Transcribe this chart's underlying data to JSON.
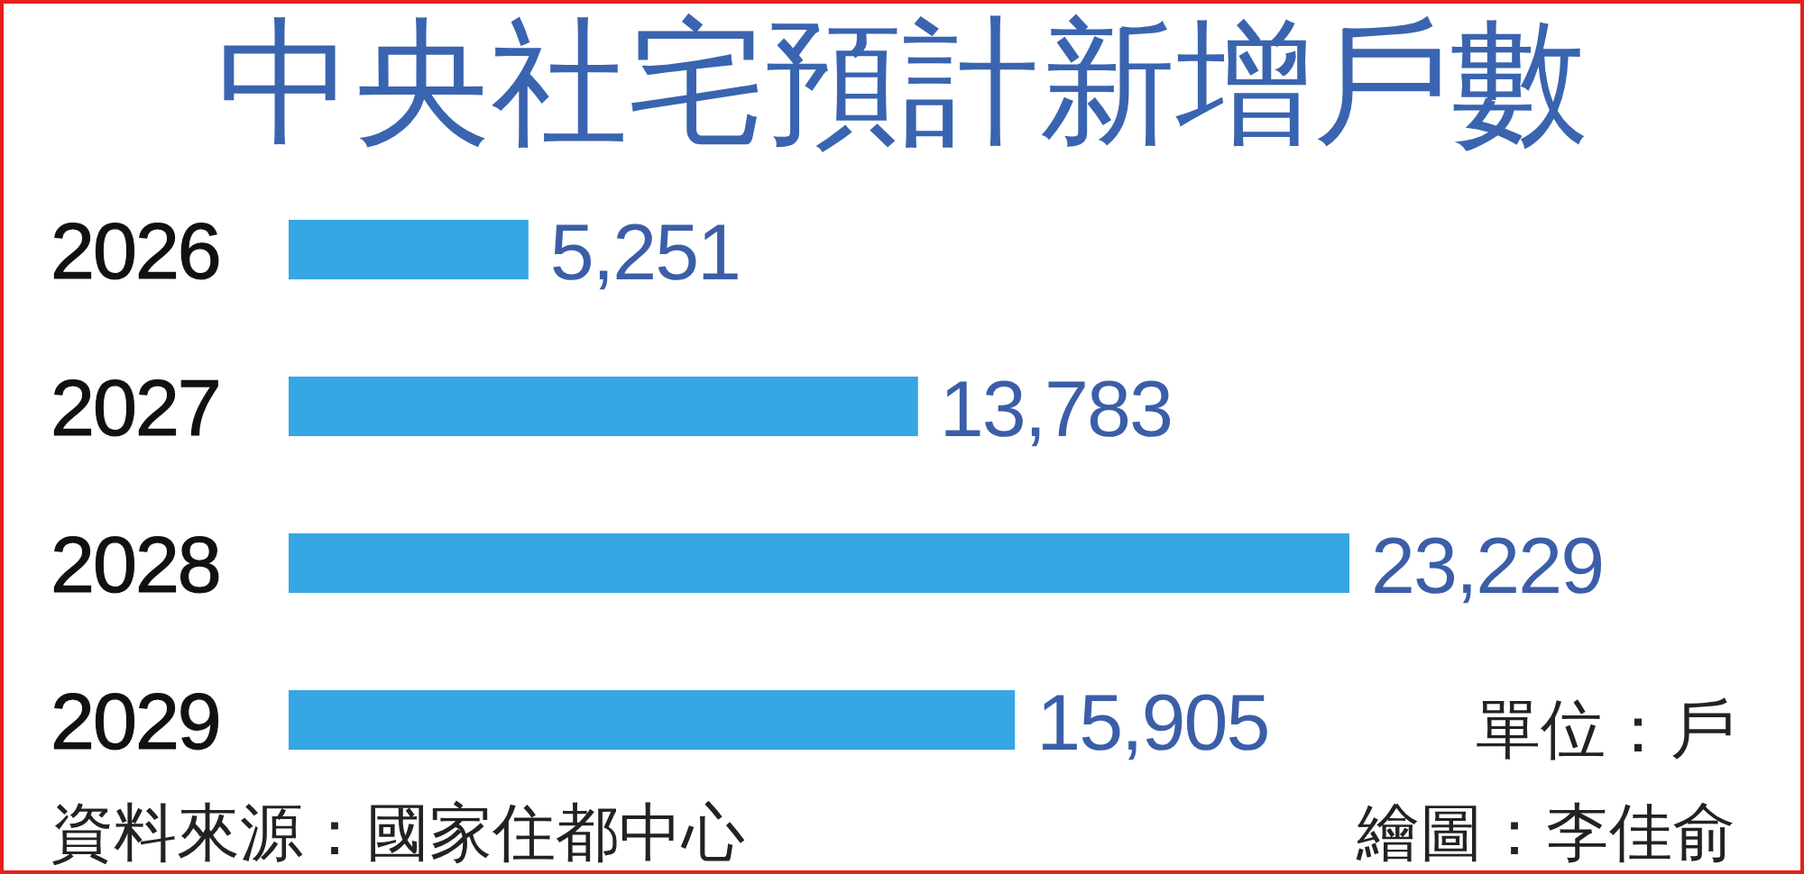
{
  "chart_data": {
    "type": "bar",
    "orientation": "horizontal",
    "title": "中央社宅預計新增戶數",
    "categories": [
      "2026",
      "2027",
      "2028",
      "2029"
    ],
    "values": [
      5251,
      13783,
      23229,
      15905
    ],
    "value_labels": [
      "5,251",
      "13,783",
      "23,229",
      "15,905"
    ],
    "color": "#36a6e4",
    "annotations": [
      "單位：戶",
      "資料來源：國家住都中心",
      "繪圖：李佳俞"
    ]
  }
}
